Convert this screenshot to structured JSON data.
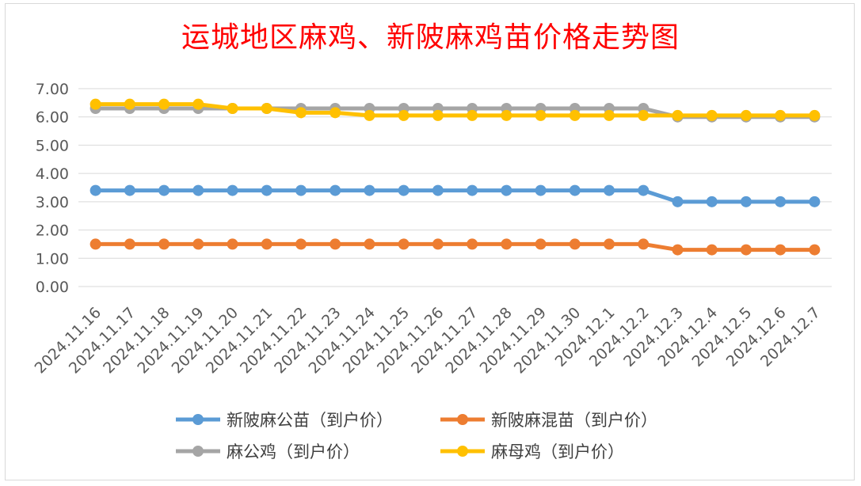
{
  "chart_data": {
    "type": "line",
    "title": "运城地区麻鸡、新陂麻鸡苗价格走势图",
    "xlabel": "",
    "ylabel": "",
    "ylim": [
      0,
      7
    ],
    "ytick_step": 1,
    "ytick_decimals": 2,
    "grid": true,
    "legend_position": "bottom",
    "categories": [
      "2024.11.16",
      "2024.11.17",
      "2024.11.18",
      "2024.11.19",
      "2024.11.20",
      "2024.11.21",
      "2024.11.22",
      "2024.11.23",
      "2024.11.24",
      "2024.11.25",
      "2024.11.26",
      "2024.11.27",
      "2024.11.28",
      "2024.11.29",
      "2024.11.30",
      "2024.12.1",
      "2024.12.2",
      "2024.12.3",
      "2024.12.4",
      "2024.12.5",
      "2024.12.6",
      "2024.12.7"
    ],
    "series": [
      {
        "name": "新陂麻公苗（到户价）",
        "color": "#5b9bd5",
        "values": [
          3.4,
          3.4,
          3.4,
          3.4,
          3.4,
          3.4,
          3.4,
          3.4,
          3.4,
          3.4,
          3.4,
          3.4,
          3.4,
          3.4,
          3.4,
          3.4,
          3.4,
          3.0,
          3.0,
          3.0,
          3.0,
          3.0
        ]
      },
      {
        "name": "新陂麻混苗（到户价）",
        "color": "#ed7d31",
        "values": [
          1.5,
          1.5,
          1.5,
          1.5,
          1.5,
          1.5,
          1.5,
          1.5,
          1.5,
          1.5,
          1.5,
          1.5,
          1.5,
          1.5,
          1.5,
          1.5,
          1.5,
          1.3,
          1.3,
          1.3,
          1.3,
          1.3
        ]
      },
      {
        "name": "麻公鸡（到户价）",
        "color": "#a5a5a5",
        "values": [
          6.3,
          6.3,
          6.3,
          6.3,
          6.3,
          6.3,
          6.3,
          6.3,
          6.3,
          6.3,
          6.3,
          6.3,
          6.3,
          6.3,
          6.3,
          6.3,
          6.3,
          6.0,
          6.0,
          6.0,
          6.0,
          6.0
        ]
      },
      {
        "name": "麻母鸡（到户价）",
        "color": "#ffc000",
        "values": [
          6.45,
          6.45,
          6.45,
          6.45,
          6.3,
          6.3,
          6.15,
          6.15,
          6.05,
          6.05,
          6.05,
          6.05,
          6.05,
          6.05,
          6.05,
          6.05,
          6.05,
          6.05,
          6.05,
          6.05,
          6.05,
          6.05
        ]
      }
    ]
  }
}
